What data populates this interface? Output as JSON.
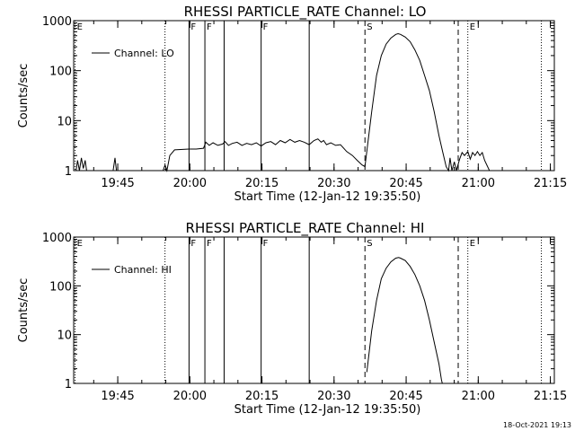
{
  "footer": {
    "timestamp": "18-Oct-2021 19:13"
  },
  "chart_data": [
    {
      "type": "line",
      "title": "RHESSI PARTICLE_RATE Channel: LO",
      "xlabel": "Start Time (12-Jan-12 19:35:50)",
      "ylabel": "Counts/sec",
      "yscale": "log",
      "ylim": [
        1,
        1000
      ],
      "xlim_minutes": [
        0,
        100
      ],
      "y_ticks": [
        {
          "v": 1,
          "label": "1"
        },
        {
          "v": 10,
          "label": "10"
        },
        {
          "v": 100,
          "label": "100"
        },
        {
          "v": 1000,
          "label": "1000"
        }
      ],
      "x_ticks": [
        {
          "m": 9.17,
          "label": "19:45"
        },
        {
          "m": 24.17,
          "label": "20:00"
        },
        {
          "m": 39.17,
          "label": "20:15"
        },
        {
          "m": 54.17,
          "label": "20:30"
        },
        {
          "m": 69.17,
          "label": "20:45"
        },
        {
          "m": 84.17,
          "label": "21:00"
        },
        {
          "m": 99.17,
          "label": "21:15"
        }
      ],
      "legend": {
        "label": "Channel: LO",
        "position": "top-left"
      },
      "markers": [
        {
          "m": 0.3,
          "label": "E",
          "style": "dotted"
        },
        {
          "m": 19.0,
          "label": "",
          "style": "dotted"
        },
        {
          "m": 24.0,
          "label": "F",
          "style": "solid"
        },
        {
          "m": 27.3,
          "label": "F",
          "style": "solid"
        },
        {
          "m": 31.3,
          "label": "",
          "style": "solid"
        },
        {
          "m": 39.0,
          "label": "F",
          "style": "solid"
        },
        {
          "m": 49.0,
          "label": "",
          "style": "solid"
        },
        {
          "m": 60.6,
          "label": "S",
          "style": "dashed"
        },
        {
          "m": 80.0,
          "label": "",
          "style": "dashed"
        },
        {
          "m": 82.0,
          "label": "E",
          "style": "dotted"
        },
        {
          "m": 97.3,
          "label": "",
          "style": "dotted"
        }
      ],
      "series": [
        {
          "name": "Channel: LO",
          "points": [
            [
              0.5,
              1
            ],
            [
              0.8,
              1.6
            ],
            [
              1.2,
              1
            ],
            [
              1.6,
              1.8
            ],
            [
              2.0,
              1.1
            ],
            [
              2.4,
              1.6
            ],
            [
              2.7,
              1
            ],
            [
              8.2,
              1
            ],
            [
              8.6,
              1.8
            ],
            [
              8.9,
              1
            ],
            [
              18.6,
              1
            ],
            [
              19.0,
              1.3
            ],
            [
              19.4,
              1
            ],
            [
              20.0,
              2.0
            ],
            [
              21.0,
              2.6
            ],
            [
              24.0,
              2.7
            ],
            [
              25.5,
              2.7
            ],
            [
              27.0,
              2.8
            ],
            [
              27.5,
              3.7
            ],
            [
              28.2,
              3.2
            ],
            [
              29.0,
              3.6
            ],
            [
              30.0,
              3.2
            ],
            [
              31.0,
              3.4
            ],
            [
              31.5,
              3.8
            ],
            [
              32.2,
              3.2
            ],
            [
              33.0,
              3.5
            ],
            [
              34.0,
              3.7
            ],
            [
              35.0,
              3.2
            ],
            [
              36.0,
              3.5
            ],
            [
              37.0,
              3.3
            ],
            [
              38.0,
              3.6
            ],
            [
              39.0,
              3.1
            ],
            [
              40.0,
              3.6
            ],
            [
              41.0,
              3.8
            ],
            [
              42.0,
              3.3
            ],
            [
              43.0,
              4.0
            ],
            [
              44.0,
              3.6
            ],
            [
              45.0,
              4.2
            ],
            [
              46.0,
              3.7
            ],
            [
              47.0,
              4.0
            ],
            [
              48.0,
              3.7
            ],
            [
              49.0,
              3.3
            ],
            [
              50.0,
              4.0
            ],
            [
              50.8,
              4.3
            ],
            [
              51.5,
              3.7
            ],
            [
              52.0,
              4.0
            ],
            [
              52.6,
              3.3
            ],
            [
              53.5,
              3.6
            ],
            [
              54.5,
              3.2
            ],
            [
              55.5,
              3.3
            ],
            [
              56.8,
              2.4
            ],
            [
              58.0,
              2.0
            ],
            [
              59.0,
              1.6
            ],
            [
              60.0,
              1.3
            ],
            [
              60.6,
              1.2
            ],
            [
              62.0,
              15
            ],
            [
              63.0,
              80
            ],
            [
              64.0,
              200
            ],
            [
              65.0,
              340
            ],
            [
              66.0,
              450
            ],
            [
              67.0,
              530
            ],
            [
              67.5,
              550
            ],
            [
              68.0,
              530
            ],
            [
              69.0,
              470
            ],
            [
              70.0,
              380
            ],
            [
              71.0,
              260
            ],
            [
              72.0,
              160
            ],
            [
              73.0,
              80
            ],
            [
              74.0,
              40
            ],
            [
              75.0,
              15
            ],
            [
              76.0,
              5
            ],
            [
              76.8,
              2.3
            ],
            [
              77.5,
              1.2
            ],
            [
              78.0,
              1
            ],
            [
              78.3,
              1.8
            ],
            [
              78.7,
              1
            ],
            [
              79.2,
              1.5
            ],
            [
              79.6,
              1
            ],
            [
              80.3,
              1.7
            ],
            [
              80.8,
              2.3
            ],
            [
              81.3,
              2.0
            ],
            [
              82.0,
              2.4
            ],
            [
              82.5,
              1.7
            ],
            [
              83.0,
              2.3
            ],
            [
              83.5,
              2.0
            ],
            [
              84.0,
              2.4
            ],
            [
              84.5,
              2.0
            ],
            [
              85.0,
              2.3
            ],
            [
              85.5,
              1.6
            ],
            [
              86.5,
              1
            ]
          ]
        }
      ]
    },
    {
      "type": "line",
      "title": "RHESSI PARTICLE_RATE Channel: HI",
      "xlabel": "Start Time (12-Jan-12 19:35:50)",
      "ylabel": "Counts/sec",
      "yscale": "log",
      "ylim": [
        1,
        1000
      ],
      "xlim_minutes": [
        0,
        100
      ],
      "y_ticks": [
        {
          "v": 1,
          "label": "1"
        },
        {
          "v": 10,
          "label": "10"
        },
        {
          "v": 100,
          "label": "100"
        },
        {
          "v": 1000,
          "label": "1000"
        }
      ],
      "x_ticks": [
        {
          "m": 9.17,
          "label": "19:45"
        },
        {
          "m": 24.17,
          "label": "20:00"
        },
        {
          "m": 39.17,
          "label": "20:15"
        },
        {
          "m": 54.17,
          "label": "20:30"
        },
        {
          "m": 69.17,
          "label": "20:45"
        },
        {
          "m": 84.17,
          "label": "21:00"
        },
        {
          "m": 99.17,
          "label": "21:15"
        }
      ],
      "legend": {
        "label": "Channel: HI",
        "position": "top-left"
      },
      "markers": [
        {
          "m": 0.3,
          "label": "E",
          "style": "dotted"
        },
        {
          "m": 19.0,
          "label": "",
          "style": "dotted"
        },
        {
          "m": 24.0,
          "label": "F",
          "style": "solid"
        },
        {
          "m": 27.3,
          "label": "F",
          "style": "solid"
        },
        {
          "m": 31.3,
          "label": "",
          "style": "solid"
        },
        {
          "m": 39.0,
          "label": "F",
          "style": "solid"
        },
        {
          "m": 49.0,
          "label": "",
          "style": "solid"
        },
        {
          "m": 60.6,
          "label": "S",
          "style": "dashed"
        },
        {
          "m": 80.0,
          "label": "",
          "style": "dashed"
        },
        {
          "m": 82.0,
          "label": "E",
          "style": "dotted"
        },
        {
          "m": 97.3,
          "label": "",
          "style": "dotted"
        }
      ],
      "series": [
        {
          "name": "Channel: HI",
          "points": [
            [
              61.0,
              1.7
            ],
            [
              62.0,
              12
            ],
            [
              63.0,
              50
            ],
            [
              64.0,
              140
            ],
            [
              65.0,
              230
            ],
            [
              66.0,
              310
            ],
            [
              67.0,
              370
            ],
            [
              67.6,
              380
            ],
            [
              68.0,
              370
            ],
            [
              69.0,
              330
            ],
            [
              70.0,
              250
            ],
            [
              71.0,
              170
            ],
            [
              72.0,
              100
            ],
            [
              73.0,
              50
            ],
            [
              74.0,
              20
            ],
            [
              75.0,
              7
            ],
            [
              76.0,
              2.5
            ],
            [
              76.5,
              1.2
            ],
            [
              76.7,
              1
            ]
          ]
        }
      ]
    }
  ]
}
